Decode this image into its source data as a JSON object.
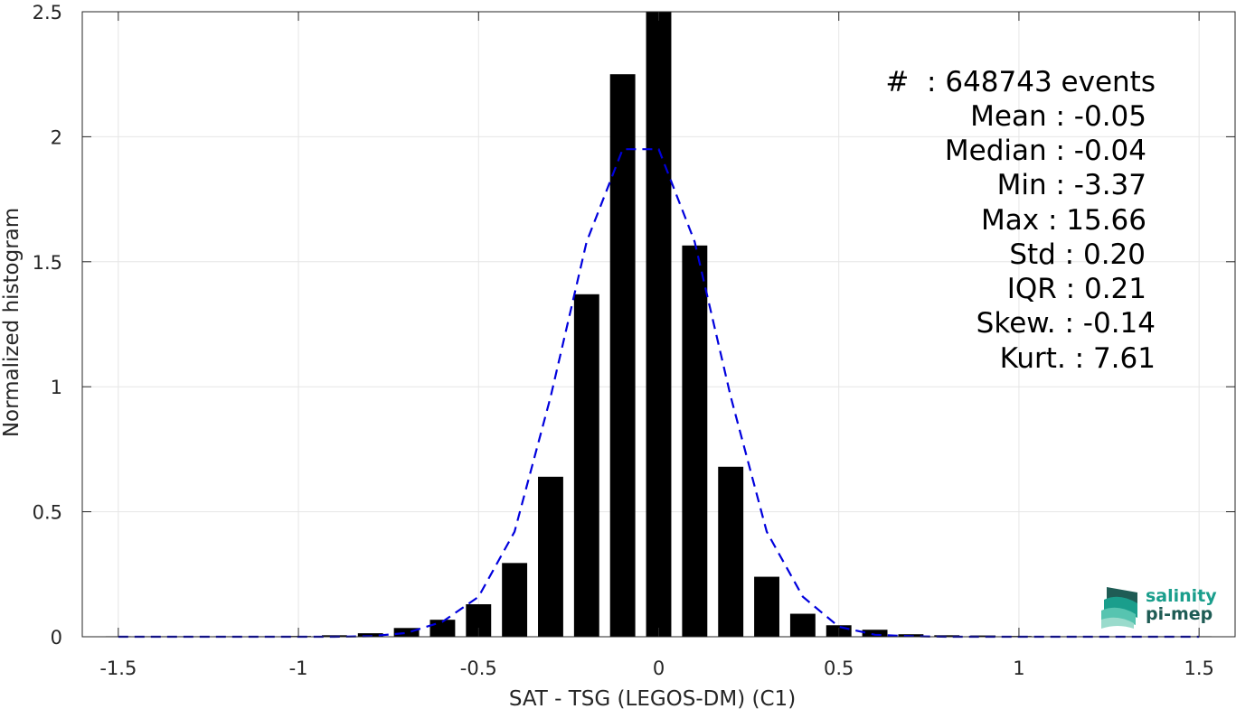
{
  "chart_data": {
    "type": "bar",
    "xlabel": "SAT - TSG (LEGOS-DM) (C1)",
    "ylabel": "Normalized histogram",
    "xlim": [
      -1.6,
      1.6
    ],
    "ylim": [
      0,
      2.5
    ],
    "xticks": [
      -1.5,
      -1,
      -0.5,
      0,
      0.5,
      1,
      1.5
    ],
    "xtick_labels": [
      "-1.5",
      "-1",
      "-0.5",
      "0",
      "0.5",
      "1",
      "1.5"
    ],
    "yticks": [
      0,
      0.5,
      1,
      1.5,
      2,
      2.5
    ],
    "ytick_labels": [
      "0",
      "0.5",
      "1",
      "1.5",
      "2",
      "2.5"
    ],
    "grid": true,
    "bar_color": "#000000",
    "bars": {
      "x": [
        -1.5,
        -1.4,
        -1.3,
        -1.2,
        -1.1,
        -1.0,
        -0.9,
        -0.8,
        -0.7,
        -0.6,
        -0.5,
        -0.4,
        -0.3,
        -0.2,
        -0.1,
        0.0,
        0.1,
        0.2,
        0.3,
        0.4,
        0.5,
        0.6,
        0.7,
        0.8,
        0.9,
        1.0,
        1.1,
        1.2,
        1.3,
        1.4,
        1.5
      ],
      "values": [
        0.002,
        0.002,
        0.002,
        0.002,
        0.002,
        0.003,
        0.006,
        0.014,
        0.035,
        0.068,
        0.13,
        0.295,
        0.64,
        1.37,
        2.25,
        2.5,
        1.565,
        0.68,
        0.24,
        0.092,
        0.046,
        0.028,
        0.01,
        0.006,
        0.005,
        0.003,
        0.002,
        0.002,
        0.002,
        0.002,
        0.002
      ]
    },
    "series": [
      {
        "type": "line",
        "style": "dashed",
        "color": "#0000dd",
        "x": [
          -1.5,
          -1.4,
          -1.3,
          -1.2,
          -1.1,
          -1.0,
          -0.9,
          -0.8,
          -0.7,
          -0.6,
          -0.5,
          -0.4,
          -0.3,
          -0.2,
          -0.1,
          0.0,
          0.1,
          0.2,
          0.3,
          0.4,
          0.5,
          0.6,
          0.7,
          0.8,
          0.9,
          1.0,
          1.1,
          1.2,
          1.3,
          1.4,
          1.5
        ],
        "values": [
          0,
          0,
          0,
          0,
          0,
          0,
          0,
          0.002,
          0.015,
          0.06,
          0.16,
          0.42,
          0.96,
          1.58,
          1.95,
          1.95,
          1.58,
          0.96,
          0.42,
          0.16,
          0.04,
          0.008,
          0.002,
          0,
          0,
          0,
          0,
          0,
          0,
          0,
          0
        ]
      }
    ],
    "stats_legend_position": "top-right",
    "stats": [
      "#  : 648743 events",
      "Mean : -0.05",
      "Median : -0.04",
      "Min : -3.37",
      "Max : 15.66",
      "Std : 0.20",
      "IQR : 0.21",
      "Skew. : -0.14",
      "Kurt. : 7.61"
    ]
  },
  "logo": {
    "line1": "salinity",
    "line2": "pi-mep",
    "color_primary": "#1a9e8c",
    "color_dark": "#1f5c55"
  }
}
